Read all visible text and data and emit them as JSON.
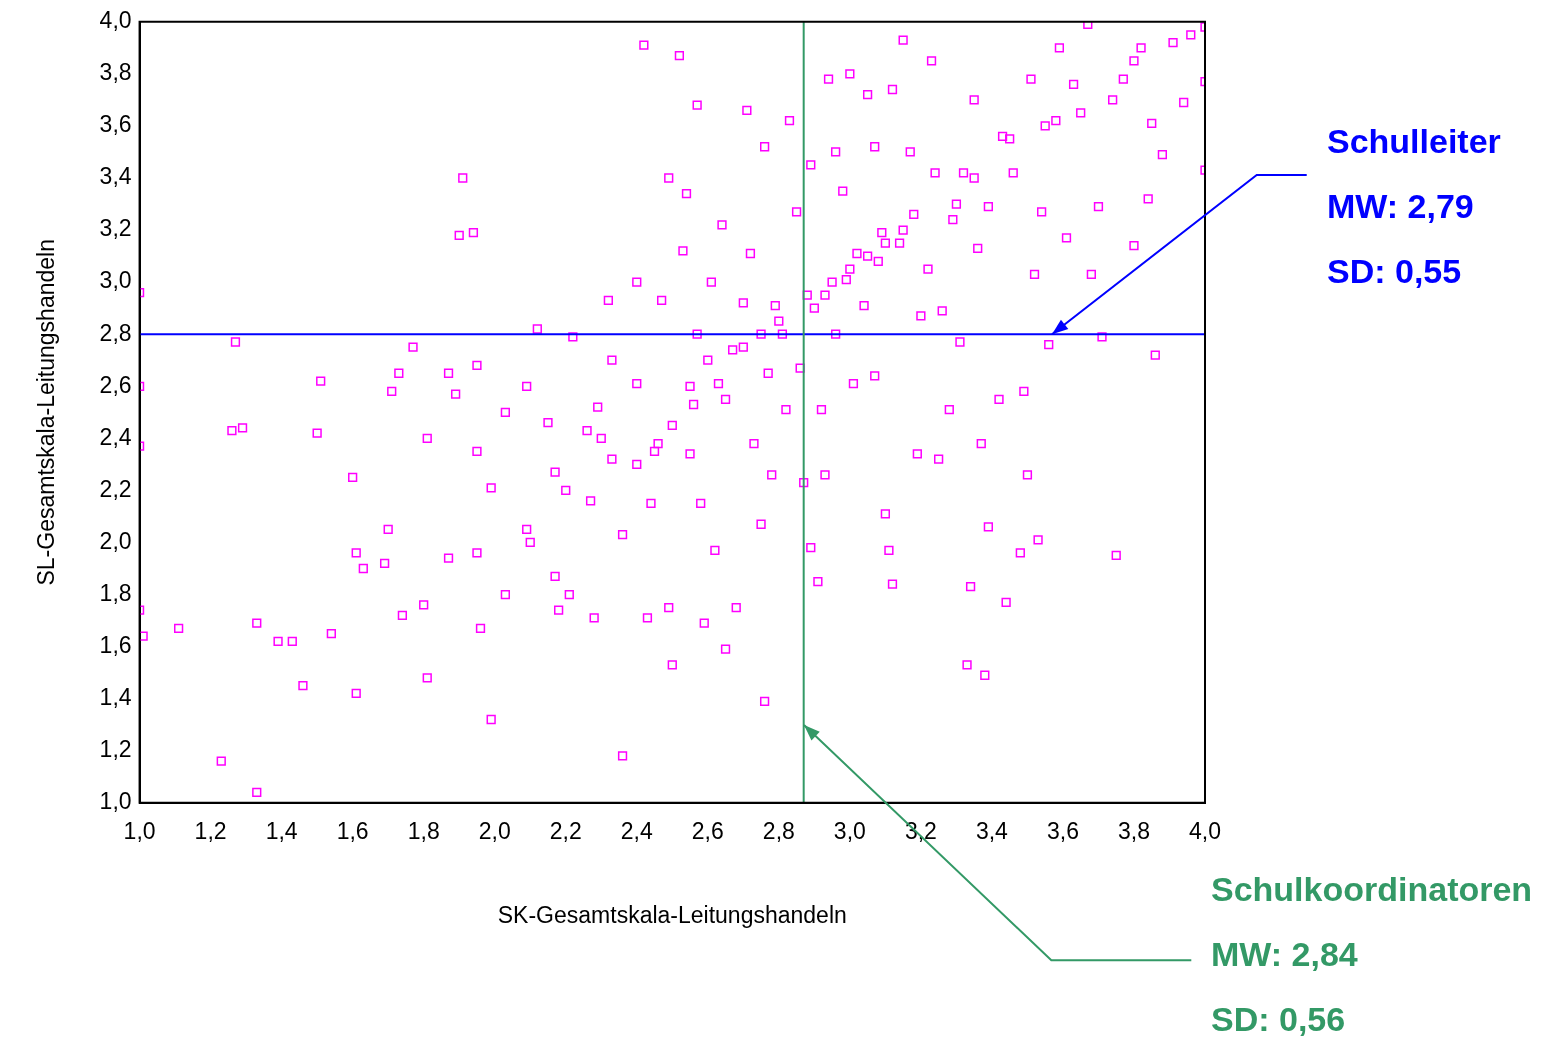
{
  "chart_data": {
    "type": "scatter",
    "xlabel": "SK-Gesamtskala-Leitungshandeln",
    "ylabel": "SL-Gesamtskala-Leitungshandeln",
    "xlim": [
      1,
      4
    ],
    "ylim": [
      1,
      4
    ],
    "xticks": [
      {
        "value": 1,
        "label": "1,0"
      },
      {
        "value": 1.2,
        "label": "1,2"
      },
      {
        "value": 1.4,
        "label": "1,4"
      },
      {
        "value": 1.6,
        "label": "1,6"
      },
      {
        "value": 1.8,
        "label": "1,8"
      },
      {
        "value": 2,
        "label": "2,0"
      },
      {
        "value": 2.2,
        "label": "2,2"
      },
      {
        "value": 2.4,
        "label": "2,4"
      },
      {
        "value": 2.6,
        "label": "2,6"
      },
      {
        "value": 2.8,
        "label": "2,8"
      },
      {
        "value": 3,
        "label": "3,0"
      },
      {
        "value": 3.2,
        "label": "3,2"
      },
      {
        "value": 3.4,
        "label": "3,4"
      },
      {
        "value": 3.6,
        "label": "3,6"
      },
      {
        "value": 3.8,
        "label": "3,8"
      },
      {
        "value": 4,
        "label": "4,0"
      }
    ],
    "yticks": [
      {
        "value": 1,
        "label": "1,0"
      },
      {
        "value": 1.2,
        "label": "1,2"
      },
      {
        "value": 1.4,
        "label": "1,4"
      },
      {
        "value": 1.6,
        "label": "1,6"
      },
      {
        "value": 1.8,
        "label": "1,8"
      },
      {
        "value": 2,
        "label": "2,0"
      },
      {
        "value": 2.2,
        "label": "2,2"
      },
      {
        "value": 2.4,
        "label": "2,4"
      },
      {
        "value": 2.6,
        "label": "2,6"
      },
      {
        "value": 2.8,
        "label": "2,8"
      },
      {
        "value": 3,
        "label": "3,0"
      },
      {
        "value": 3.2,
        "label": "3,2"
      },
      {
        "value": 3.4,
        "label": "3,4"
      },
      {
        "value": 3.6,
        "label": "3,6"
      },
      {
        "value": 3.8,
        "label": "3,8"
      },
      {
        "value": 4,
        "label": "4,0"
      }
    ],
    "grid": false,
    "legend": false,
    "marker": "square",
    "series": [
      {
        "color": "#ff00ff",
        "x": [
          1.0,
          1.0,
          1.0,
          1.0,
          1.01,
          1.11,
          1.23,
          1.33,
          1.27,
          1.26,
          1.29,
          1.33,
          1.39,
          1.43,
          1.46,
          1.5,
          1.51,
          1.54,
          1.6,
          1.61,
          1.61,
          1.63,
          1.7,
          1.69,
          1.71,
          1.73,
          1.74,
          1.77,
          1.8,
          1.81,
          1.81,
          1.87,
          1.87,
          1.89,
          1.91,
          1.9,
          1.94,
          1.95,
          1.95,
          1.95,
          1.96,
          1.99,
          1.99,
          2.03,
          2.03,
          2.09,
          2.09,
          2.12,
          2.15,
          2.17,
          2.17,
          2.18,
          2.21,
          2.22,
          2.26,
          2.27,
          2.28,
          2.29,
          2.32,
          2.33,
          2.33,
          2.36,
          2.36,
          2.4,
          2.4,
          2.42,
          2.43,
          2.44,
          2.46,
          2.47,
          2.49,
          2.49,
          2.5,
          2.52,
          2.53,
          2.54,
          2.55,
          2.56,
          2.57,
          2.57,
          2.58,
          2.59,
          2.61,
          2.62,
          2.63,
          2.64,
          2.65,
          2.67,
          2.68,
          2.7,
          2.71,
          2.72,
          2.73,
          2.75,
          2.76,
          2.76,
          2.77,
          2.78,
          2.79,
          2.81,
          2.82,
          2.83,
          2.85,
          2.86,
          2.87,
          2.88,
          2.89,
          2.89,
          2.91,
          2.92,
          2.93,
          2.93,
          2.94,
          2.96,
          2.96,
          2.98,
          2.99,
          3.0,
          3.01,
          3.02,
          3.04,
          3.05,
          3.07,
          3.07,
          3.08,
          3.09,
          3.1,
          3.11,
          3.12,
          3.12,
          3.14,
          3.15,
          3.17,
          3.18,
          3.19,
          3.2,
          3.22,
          3.23,
          3.24,
          3.25,
          3.26,
          3.28,
          3.29,
          3.31,
          3.32,
          3.33,
          3.34,
          3.35,
          3.36,
          3.37,
          3.38,
          3.39,
          3.39,
          3.42,
          3.43,
          3.44,
          3.46,
          3.48,
          3.49,
          3.5,
          3.51,
          3.52,
          3.53,
          3.54,
          3.56,
          3.58,
          3.59,
          3.61,
          3.63,
          3.67,
          3.68,
          3.7,
          3.71,
          3.74,
          3.75,
          3.77,
          3.8,
          3.82,
          3.84,
          3.85,
          3.86,
          3.88,
          3.91,
          3.94,
          3.96,
          4.0,
          4.0,
          4.0,
          2.65,
          2.7,
          2.75,
          2.8,
          2.9,
          2.95,
          3.0,
          3.05,
          3.1,
          2.55,
          2.5,
          2.45,
          2.4,
          2.6,
          3.15,
          3.3,
          3.35,
          3.45,
          3.55,
          3.65,
          3.8,
          2.3,
          2.2,
          2.1
        ],
        "values": [
          2.96,
          2.6,
          2.37,
          1.74,
          1.64,
          1.67,
          1.16,
          1.04,
          2.77,
          2.43,
          2.44,
          1.69,
          1.62,
          1.62,
          1.45,
          2.42,
          2.62,
          1.65,
          2.25,
          1.96,
          1.42,
          1.9,
          2.05,
          1.92,
          2.58,
          2.65,
          1.72,
          2.75,
          1.76,
          2.4,
          1.48,
          1.94,
          2.65,
          2.57,
          3.4,
          3.18,
          3.19,
          2.68,
          2.35,
          1.96,
          1.67,
          2.21,
          1.32,
          1.8,
          2.5,
          2.6,
          2.05,
          2.82,
          2.46,
          1.87,
          2.27,
          1.74,
          1.8,
          2.79,
          2.43,
          2.16,
          1.71,
          2.52,
          2.93,
          2.7,
          2.32,
          2.03,
          1.18,
          3.0,
          2.61,
          3.91,
          1.71,
          2.15,
          2.38,
          2.93,
          3.4,
          1.75,
          1.53,
          3.87,
          3.12,
          3.34,
          2.34,
          2.53,
          3.68,
          2.8,
          2.15,
          1.69,
          3.0,
          1.97,
          2.61,
          3.22,
          1.59,
          2.74,
          1.75,
          2.92,
          3.66,
          3.11,
          2.38,
          2.07,
          1.39,
          3.52,
          2.65,
          2.26,
          2.91,
          2.8,
          2.51,
          3.62,
          3.27,
          2.67,
          2.23,
          2.95,
          1.98,
          3.45,
          1.85,
          2.51,
          2.26,
          2.95,
          3.78,
          3.5,
          2.8,
          3.35,
          3.01,
          3.8,
          2.61,
          3.11,
          2.91,
          3.72,
          2.64,
          3.52,
          3.08,
          3.19,
          2.11,
          1.97,
          1.84,
          3.74,
          3.15,
          3.93,
          3.5,
          3.26,
          2.34,
          2.87,
          3.05,
          3.85,
          3.42,
          2.32,
          2.89,
          2.51,
          3.24,
          2.77,
          3.42,
          1.53,
          1.83,
          3.7,
          3.13,
          2.38,
          1.49,
          2.06,
          3.29,
          2.55,
          3.56,
          1.77,
          3.42,
          1.96,
          2.58,
          2.26,
          3.78,
          3.03,
          2.01,
          3.27,
          2.76,
          3.62,
          3.9,
          3.17,
          3.76,
          3.99,
          3.03,
          3.29,
          2.79,
          3.7,
          1.95,
          3.78,
          3.14,
          3.9,
          3.32,
          3.61,
          2.72,
          3.49,
          3.92,
          3.69,
          3.95,
          3.98,
          3.77,
          3.43,
          2.55,
          2.75,
          2.8,
          2.85,
          2.9,
          3.0,
          3.05,
          3.1,
          3.15,
          2.6,
          2.45,
          2.35,
          2.3,
          2.7,
          3.2,
          3.3,
          3.4,
          3.55,
          3.6,
          3.65,
          3.85,
          2.4,
          2.2,
          2.0
        ]
      }
    ],
    "ref_lines": [
      {
        "axis": "y",
        "value": 2.8,
        "color": "#0000ff"
      },
      {
        "axis": "x",
        "value": 2.87,
        "color": "#339966"
      }
    ],
    "annotations": [
      {
        "text": "Schulleiter",
        "x": 3.57,
        "y": 2.8
      },
      "MW: 2,79",
      "SD: 0,55",
      "Schulkoordinatoren",
      {
        "text": "MW: 2,84",
        "x": 2.87,
        "y": 1.3
      },
      "SD: 0,56"
    ]
  }
}
